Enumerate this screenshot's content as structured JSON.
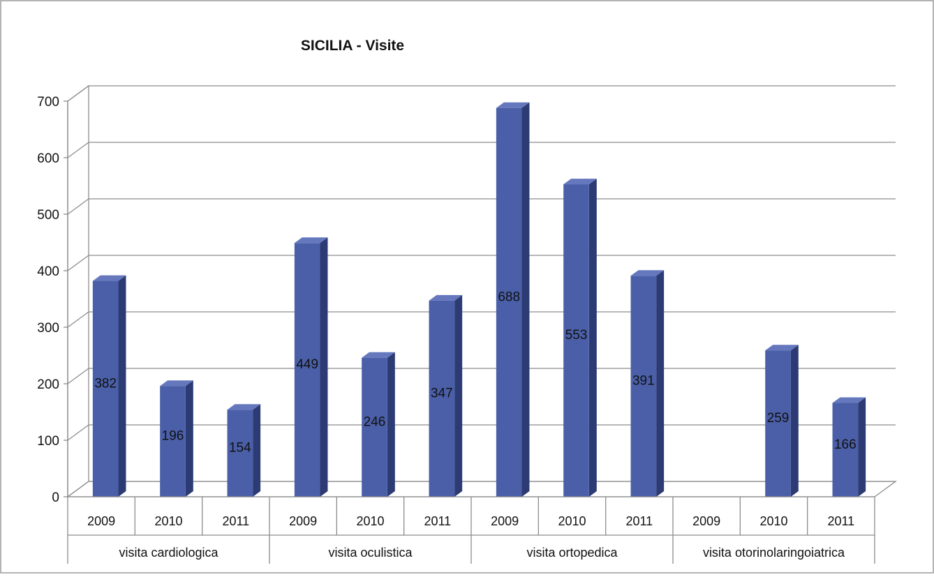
{
  "chart_data": {
    "type": "bar",
    "title": "SICILIA - Visite",
    "xlabel": "",
    "ylabel": "",
    "ylim": [
      0,
      700
    ],
    "yticks": [
      "0",
      "100",
      "200",
      "300",
      "400",
      "500",
      "600",
      "700"
    ],
    "grid": true,
    "legend": "none",
    "style": "3d-column",
    "bar_color": "#4a5fa8",
    "bar_side_color": "#2c3b73",
    "bar_top_color": "#6577bd",
    "groups": [
      {
        "label": "visita cardiologica",
        "categories": [
          "2009",
          "2010",
          "2011"
        ],
        "values": [
          382,
          196,
          154
        ]
      },
      {
        "label": "visita oculistica",
        "categories": [
          "2009",
          "2010",
          "2011"
        ],
        "values": [
          449,
          246,
          347
        ]
      },
      {
        "label": "visita ortopedica",
        "categories": [
          "2009",
          "2010",
          "2011"
        ],
        "values": [
          688,
          553,
          391
        ]
      },
      {
        "label": "visita otorinolaringoiatrica",
        "categories": [
          "2009",
          "2010",
          "2011"
        ],
        "values": [
          null,
          259,
          166
        ]
      }
    ]
  }
}
